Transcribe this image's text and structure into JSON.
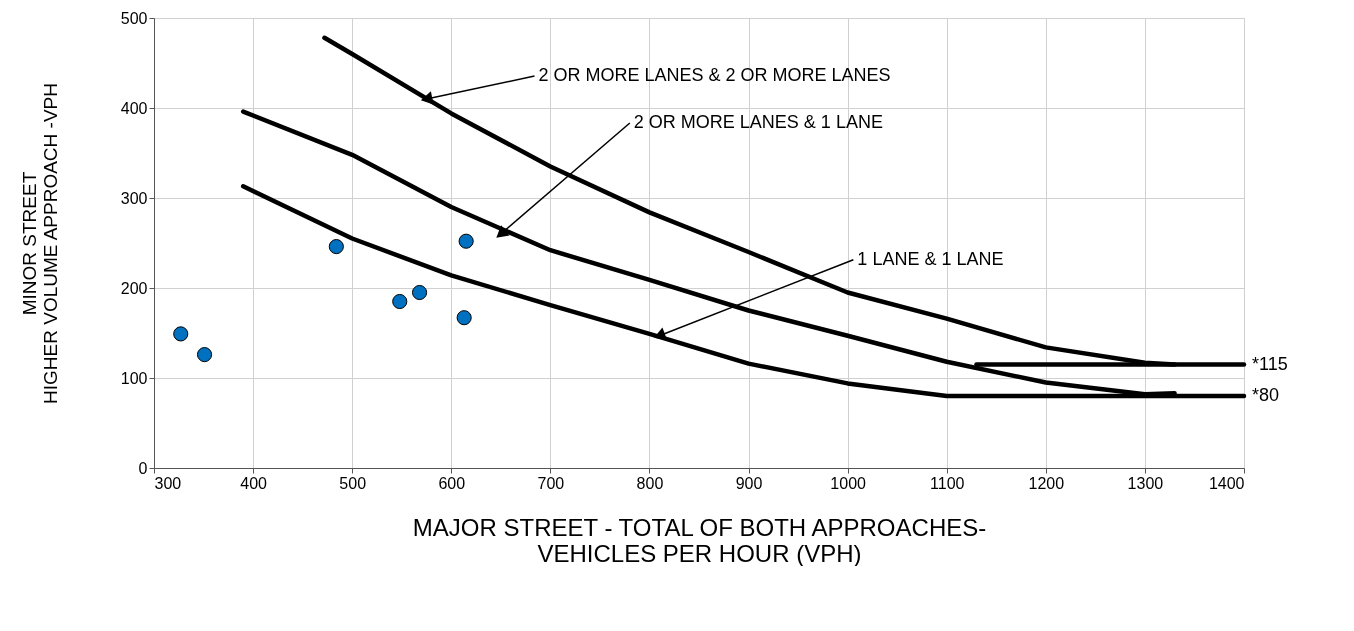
{
  "chart_data": {
    "type": "line",
    "xlabel": "MAJOR STREET - TOTAL OF BOTH APPROACHES-\nVEHICLES PER HOUR (VPH)",
    "ylabel": "MINOR STREET\nHIGHER VOLUME APPROACH -VPH",
    "xlim": [
      300,
      1400
    ],
    "xticks": [
      300,
      400,
      500,
      600,
      700,
      800,
      900,
      1000,
      1100,
      1200,
      1300,
      1400
    ],
    "ylim": [
      0,
      500
    ],
    "yticks": [
      0,
      100,
      200,
      300,
      400,
      500
    ],
    "grid": true,
    "line_style": "solid",
    "series": [
      {
        "color": "#000000",
        "x": [
          472,
          500,
          600,
          700,
          800,
          900,
          1000,
          1100,
          1200,
          1300,
          1330
        ],
        "values": [
          478,
          460,
          394,
          335,
          284,
          240,
          195,
          166,
          134,
          117,
          115
        ]
      },
      {
        "color": "#000000",
        "x": [
          390,
          500,
          600,
          700,
          800,
          900,
          1000,
          1100,
          1200,
          1300,
          1330
        ],
        "values": [
          396,
          348,
          290,
          242,
          209,
          175,
          147,
          118,
          95,
          82,
          83
        ]
      },
      {
        "color": "#000000",
        "x": [
          390,
          500,
          600,
          700,
          800,
          900,
          1000,
          1100,
          1400
        ],
        "values": [
          313,
          255,
          214,
          181,
          149,
          116,
          94,
          80,
          80
        ]
      },
      {
        "color": "#000000",
        "x": [
          1130,
          1400
        ],
        "values": [
          115,
          115
        ]
      },
      {
        "type": "scatter",
        "color": "#0070c0",
        "marker": "circle",
        "x": [
          327,
          351,
          484,
          548,
          568,
          613,
          615
        ],
        "values": [
          149,
          126,
          246,
          185,
          195,
          167,
          252
        ]
      }
    ],
    "annotations": [
      {
        "text": "2 OR MORE LANES & 2 OR MORE LANES",
        "x": 575,
        "y": 410
      },
      {
        "text": "2 OR MORE LANES & 1 LANE",
        "x": 650,
        "y": 260
      },
      {
        "text": "1 LANE & 1 LANE",
        "x": 810,
        "y": 147
      },
      {
        "text": "*115",
        "x": 1400,
        "y": 115
      },
      {
        "text": "*80",
        "x": 1400,
        "y": 80
      }
    ]
  }
}
